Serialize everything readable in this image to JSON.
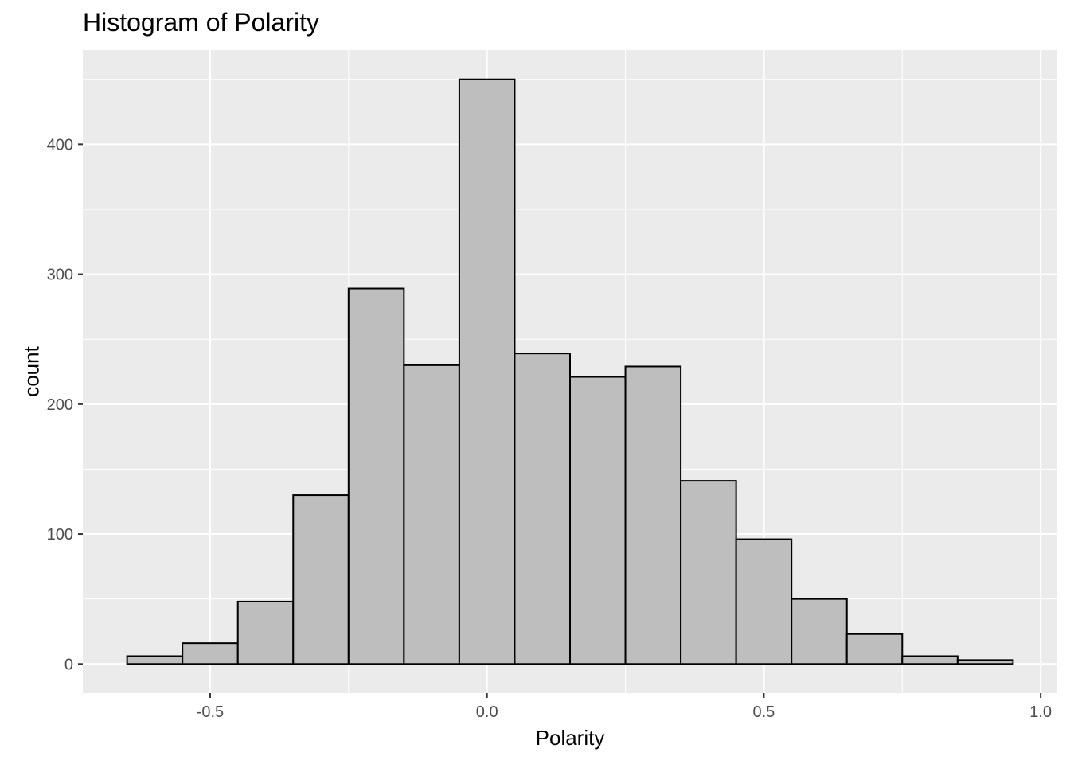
{
  "chart_data": {
    "type": "bar",
    "title": "Histogram of Polarity",
    "xlabel": "Polarity",
    "ylabel": "count",
    "bin_width": 0.1,
    "bins": [
      {
        "x0": -0.65,
        "x1": -0.55,
        "count": 6
      },
      {
        "x0": -0.55,
        "x1": -0.45,
        "count": 16
      },
      {
        "x0": -0.45,
        "x1": -0.35,
        "count": 48
      },
      {
        "x0": -0.35,
        "x1": -0.25,
        "count": 130
      },
      {
        "x0": -0.25,
        "x1": -0.15,
        "count": 289
      },
      {
        "x0": -0.15,
        "x1": -0.05,
        "count": 230
      },
      {
        "x0": -0.05,
        "x1": 0.05,
        "count": 450
      },
      {
        "x0": 0.05,
        "x1": 0.15,
        "count": 239
      },
      {
        "x0": 0.15,
        "x1": 0.25,
        "count": 221
      },
      {
        "x0": 0.25,
        "x1": 0.35,
        "count": 229
      },
      {
        "x0": 0.35,
        "x1": 0.45,
        "count": 141
      },
      {
        "x0": 0.45,
        "x1": 0.55,
        "count": 96
      },
      {
        "x0": 0.55,
        "x1": 0.65,
        "count": 50
      },
      {
        "x0": 0.65,
        "x1": 0.75,
        "count": 23
      },
      {
        "x0": 0.75,
        "x1": 0.85,
        "count": 6
      },
      {
        "x0": 0.85,
        "x1": 0.95,
        "count": 3
      }
    ],
    "xlim": [
      -0.73,
      1.03
    ],
    "ylim": [
      -22.5,
      472.5
    ],
    "x_ticks": [
      -0.5,
      0.0,
      0.5,
      1.0
    ],
    "x_tick_labels": [
      "-0.5",
      "0.0",
      "0.5",
      "1.0"
    ],
    "y_ticks": [
      0,
      100,
      200,
      300,
      400
    ],
    "y_tick_labels": [
      "0",
      "100",
      "200",
      "300",
      "400"
    ],
    "grid": true,
    "colors": {
      "panel_background": "#ebebeb",
      "grid_major": "#ffffff",
      "bar_fill": "#bebebe",
      "bar_outline": "#000000"
    }
  }
}
